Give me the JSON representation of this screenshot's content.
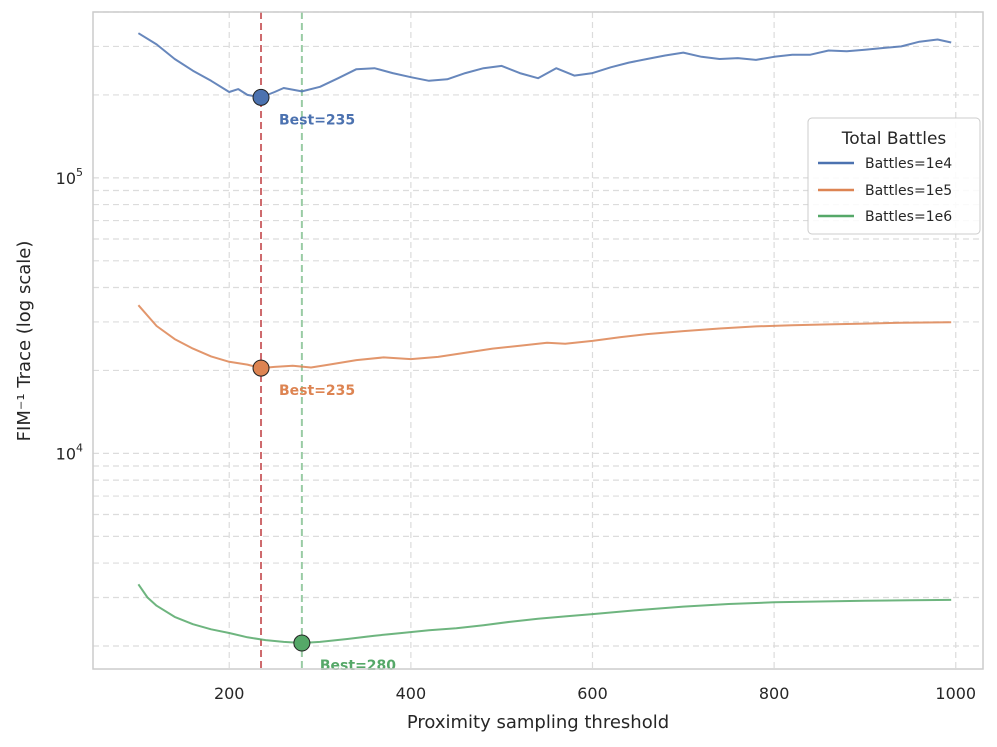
{
  "chart_data": {
    "type": "line",
    "xlabel": "Proximity sampling threshold",
    "ylabel": "FIM⁻¹ Trace (log scale)",
    "yscale": "log",
    "xlim": [
      50,
      1030
    ],
    "ylim": [
      1650,
      400000
    ],
    "xticks": [
      200,
      400,
      600,
      800,
      1000
    ],
    "yticks": [
      {
        "value": 10000,
        "label": "10^4"
      },
      {
        "value": 100000,
        "label": "10^5"
      }
    ],
    "grid": true,
    "legend": {
      "title": "Total Battles",
      "position": "right"
    },
    "series": [
      {
        "name": "Battles=1e4",
        "color": "#4c72b0",
        "x": [
          100,
          120,
          140,
          160,
          180,
          200,
          210,
          220,
          235,
          250,
          260,
          280,
          300,
          320,
          340,
          360,
          380,
          400,
          420,
          440,
          460,
          480,
          500,
          520,
          540,
          560,
          580,
          600,
          620,
          640,
          660,
          680,
          700,
          720,
          740,
          760,
          780,
          800,
          820,
          840,
          860,
          880,
          900,
          920,
          940,
          960,
          980,
          995
        ],
        "y": [
          335000,
          305000,
          270000,
          245000,
          225000,
          205000,
          210000,
          200000,
          196000,
          205000,
          212000,
          206000,
          214000,
          230000,
          248000,
          250000,
          240000,
          232000,
          225000,
          228000,
          240000,
          250000,
          255000,
          240000,
          230000,
          250000,
          235000,
          240000,
          252000,
          262000,
          270000,
          278000,
          285000,
          275000,
          270000,
          272000,
          268000,
          275000,
          280000,
          280000,
          290000,
          288000,
          292000,
          296000,
          300000,
          312000,
          318000,
          310000
        ]
      },
      {
        "name": "Battles=1e5",
        "color": "#dd8452",
        "x": [
          100,
          120,
          140,
          160,
          180,
          200,
          220,
          235,
          250,
          270,
          290,
          310,
          340,
          370,
          400,
          430,
          460,
          490,
          520,
          550,
          570,
          600,
          630,
          660,
          700,
          740,
          780,
          820,
          860,
          900,
          940,
          995
        ],
        "y": [
          34500,
          29000,
          26000,
          24000,
          22500,
          21500,
          21000,
          20400,
          20600,
          20800,
          20500,
          21000,
          21800,
          22300,
          22000,
          22400,
          23200,
          24000,
          24600,
          25200,
          25000,
          25600,
          26400,
          27100,
          27800,
          28400,
          28900,
          29200,
          29400,
          29600,
          29800,
          29900
        ]
      },
      {
        "name": "Battles=1e6",
        "color": "#55a868",
        "x": [
          100,
          110,
          120,
          140,
          160,
          180,
          200,
          220,
          240,
          260,
          280,
          300,
          330,
          360,
          390,
          420,
          450,
          480,
          510,
          540,
          570,
          600,
          650,
          700,
          750,
          800,
          850,
          900,
          950,
          995
        ],
        "y": [
          3350,
          3000,
          2800,
          2550,
          2400,
          2300,
          2230,
          2150,
          2100,
          2070,
          2050,
          2070,
          2120,
          2180,
          2230,
          2280,
          2320,
          2380,
          2450,
          2510,
          2560,
          2610,
          2700,
          2780,
          2840,
          2880,
          2900,
          2920,
          2930,
          2940
        ]
      }
    ],
    "annotations": [
      {
        "series": "Battles=1e4",
        "x": 235,
        "y": 196000,
        "label": "Best=235",
        "color": "#4c72b0",
        "vline_color": "#c44e52"
      },
      {
        "series": "Battles=1e5",
        "x": 235,
        "y": 20400,
        "label": "Best=235",
        "color": "#dd8452",
        "vline_color": "#c44e52"
      },
      {
        "series": "Battles=1e6",
        "x": 280,
        "y": 2050,
        "label": "Best=280",
        "color": "#55a868",
        "vline_color": "#55a868"
      }
    ]
  }
}
